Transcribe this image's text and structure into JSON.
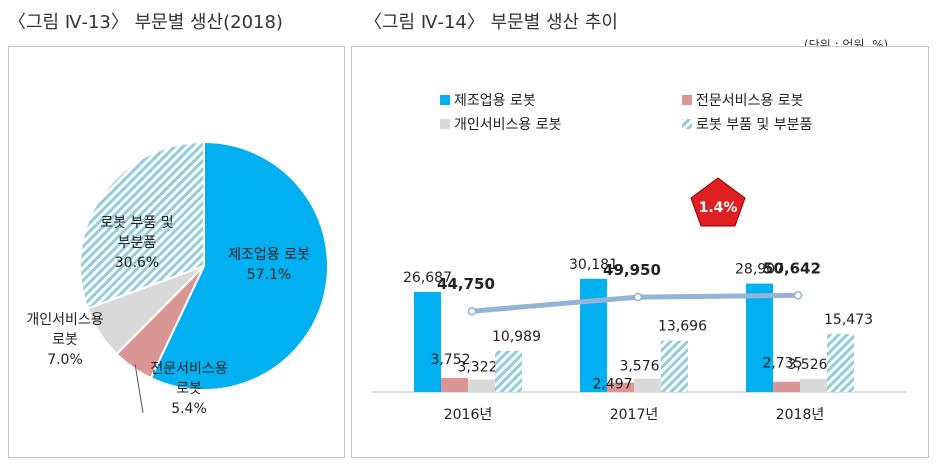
{
  "left_title": "〈그림 Ⅳ-13〉 부문별 생산(2018)",
  "right_title": "〈그림 Ⅳ-14〉 부문별 생산 추이",
  "unit_note": "(단위 : 억원, %)",
  "colors": {
    "manufacturing": "#00b0f0",
    "professional": "#d99694",
    "personal": "#d9d9d9",
    "parts": "#92cddc",
    "line": "#95b3d7",
    "growth_badge": "#e02020"
  },
  "chart_data": [
    {
      "type": "pie",
      "title": "〈그림 Ⅳ-13〉 부문별 생산(2018)",
      "slices": [
        {
          "label": "제조업용 로봇",
          "value": 57.1,
          "value_label": "57.1%",
          "color": "#00b0f0",
          "pattern": "solid"
        },
        {
          "label": "전문서비스용 로봇",
          "value": 5.4,
          "value_label": "5.4%",
          "color": "#d99694",
          "pattern": "solid"
        },
        {
          "label": "개인서비스용 로봇",
          "value": 7.0,
          "value_label": "7.0%",
          "color": "#d9d9d9",
          "pattern": "solid"
        },
        {
          "label": "로봇 부품 및 부분품",
          "value": 30.6,
          "value_label": "30.6%",
          "color": "#92cddc",
          "pattern": "hatched"
        }
      ]
    },
    {
      "type": "bar",
      "title": "〈그림 Ⅳ-14〉 부문별 생산 추이",
      "unit": "(단위 : 억원, %)",
      "categories": [
        "2016년",
        "2017년",
        "2018년"
      ],
      "series": [
        {
          "name": "제조업용 로봇",
          "values": [
            26687,
            30181,
            28907
          ],
          "labels": [
            "26,687",
            "30,181",
            "28,907"
          ],
          "color": "#00b0f0",
          "pattern": "solid"
        },
        {
          "name": "전문서비스용 로봇",
          "values": [
            3752,
            2497,
            2735
          ],
          "labels": [
            "3,752",
            "2,497",
            "2,735"
          ],
          "color": "#d99694",
          "pattern": "solid"
        },
        {
          "name": "개인서비스용 로봇",
          "values": [
            3322,
            3576,
            3526
          ],
          "labels": [
            "3,322",
            "3,576",
            "3,526"
          ],
          "color": "#d9d9d9",
          "pattern": "solid"
        },
        {
          "name": "로봇 부품 및 부분품",
          "values": [
            10989,
            13696,
            15473
          ],
          "labels": [
            "10,989",
            "13,696",
            "15,473"
          ],
          "color": "#92cddc",
          "pattern": "hatched"
        }
      ],
      "totals": {
        "values": [
          44750,
          49950,
          50642
        ],
        "labels": [
          "44,750",
          "49,950",
          "50,642"
        ]
      },
      "growth_annotation": "1.4%",
      "legend_position": "top",
      "grid": false
    }
  ]
}
